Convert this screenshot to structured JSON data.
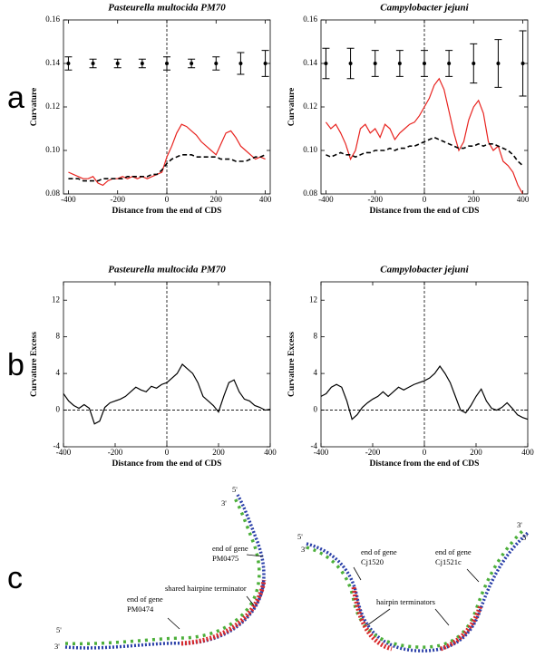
{
  "panels": [
    "a",
    "b",
    "c"
  ],
  "chart_data": [
    {
      "type": "line",
      "title": "Pasteurella multocida PM70",
      "x_label": "Distance from the end of CDS",
      "y_label": "Curvature",
      "xlim": [
        -420,
        420
      ],
      "xticks": [
        -400,
        -200,
        0,
        200,
        400
      ],
      "ylim": [
        0.08,
        0.16
      ],
      "yticks": [
        0.08,
        {
          "value": 0.1,
          "label": "0.10"
        },
        0.12,
        0.14,
        0.16
      ],
      "vline": 0,
      "x": [
        -400,
        -380,
        -360,
        -340,
        -320,
        -300,
        -280,
        -260,
        -240,
        -220,
        -200,
        -180,
        -160,
        -140,
        -120,
        -100,
        -80,
        -60,
        -40,
        -20,
        0,
        20,
        40,
        60,
        80,
        100,
        120,
        140,
        160,
        180,
        200,
        220,
        240,
        260,
        280,
        300,
        320,
        340,
        360,
        380,
        400
      ],
      "series": [
        {
          "color": "#e8231f",
          "line_style": "solid",
          "values": [
            0.09,
            0.089,
            0.088,
            0.087,
            0.087,
            0.088,
            0.085,
            0.084,
            0.086,
            0.087,
            0.087,
            0.088,
            0.087,
            0.088,
            0.087,
            0.088,
            0.087,
            0.088,
            0.089,
            0.09,
            0.097,
            0.102,
            0.108,
            0.112,
            0.111,
            0.109,
            0.107,
            0.104,
            0.102,
            0.1,
            0.098,
            0.103,
            0.108,
            0.109,
            0.106,
            0.102,
            0.1,
            0.098,
            0.096,
            0.097,
            0.096
          ]
        },
        {
          "color": "#000000",
          "line_style": "dashed",
          "values": [
            0.087,
            0.087,
            0.087,
            0.086,
            0.086,
            0.086,
            0.086,
            0.087,
            0.087,
            0.087,
            0.087,
            0.087,
            0.088,
            0.088,
            0.088,
            0.088,
            0.088,
            0.089,
            0.089,
            0.091,
            0.094,
            0.096,
            0.097,
            0.098,
            0.098,
            0.098,
            0.097,
            0.097,
            0.097,
            0.097,
            0.097,
            0.096,
            0.096,
            0.096,
            0.095,
            0.095,
            0.095,
            0.096,
            0.097,
            0.097,
            0.098
          ]
        }
      ],
      "errorbars": {
        "color": "#000000",
        "x": [
          -400,
          -300,
          -200,
          -100,
          0,
          100,
          200,
          300,
          400
        ],
        "values": [
          0.14,
          0.14,
          0.14,
          0.14,
          0.14,
          0.14,
          0.14,
          0.14,
          0.14
        ],
        "errors": [
          0.003,
          0.002,
          0.002,
          0.002,
          0.003,
          0.002,
          0.003,
          0.005,
          0.006
        ]
      }
    },
    {
      "type": "line",
      "title": "Campylobacter jejuni",
      "x_label": "Distance from the end of CDS",
      "y_label": "Curvature",
      "xlim": [
        -420,
        420
      ],
      "xticks": [
        -400,
        -200,
        0,
        200,
        400
      ],
      "ylim": [
        0.08,
        0.16
      ],
      "yticks": [
        0.08,
        {
          "value": 0.1,
          "label": "0.10"
        },
        0.12,
        0.14,
        0.16
      ],
      "vline": 0,
      "x": [
        -400,
        -380,
        -360,
        -340,
        -320,
        -300,
        -280,
        -260,
        -240,
        -220,
        -200,
        -180,
        -160,
        -140,
        -120,
        -100,
        -80,
        -60,
        -40,
        -20,
        0,
        20,
        40,
        60,
        80,
        100,
        120,
        140,
        160,
        180,
        200,
        220,
        240,
        260,
        280,
        300,
        320,
        340,
        360,
        380,
        400
      ],
      "series": [
        {
          "color": "#e8231f",
          "line_style": "solid",
          "values": [
            0.113,
            0.11,
            0.112,
            0.108,
            0.103,
            0.096,
            0.1,
            0.11,
            0.112,
            0.108,
            0.11,
            0.106,
            0.112,
            0.11,
            0.105,
            0.108,
            0.11,
            0.112,
            0.113,
            0.116,
            0.12,
            0.124,
            0.13,
            0.133,
            0.128,
            0.118,
            0.108,
            0.1,
            0.104,
            0.114,
            0.12,
            0.123,
            0.117,
            0.104,
            0.1,
            0.102,
            0.095,
            0.093,
            0.09,
            0.084,
            0.08
          ]
        },
        {
          "color": "#000000",
          "line_style": "dashed",
          "values": [
            0.098,
            0.097,
            0.098,
            0.099,
            0.098,
            0.098,
            0.097,
            0.098,
            0.099,
            0.099,
            0.1,
            0.1,
            0.1,
            0.101,
            0.1,
            0.101,
            0.101,
            0.102,
            0.102,
            0.103,
            0.104,
            0.105,
            0.106,
            0.105,
            0.104,
            0.103,
            0.102,
            0.101,
            0.101,
            0.102,
            0.102,
            0.103,
            0.102,
            0.103,
            0.103,
            0.102,
            0.101,
            0.1,
            0.098,
            0.095,
            0.093
          ]
        }
      ],
      "errorbars": {
        "color": "#000000",
        "x": [
          -400,
          -300,
          -200,
          -100,
          0,
          100,
          200,
          300,
          400
        ],
        "values": [
          0.14,
          0.14,
          0.14,
          0.14,
          0.14,
          0.14,
          0.14,
          0.14,
          0.14
        ],
        "errors": [
          0.007,
          0.007,
          0.006,
          0.006,
          0.006,
          0.006,
          0.009,
          0.011,
          0.015
        ]
      }
    },
    {
      "type": "line",
      "title": "Pasteurella multocida PM70",
      "x_label": "Distance from the end of CDS",
      "y_label": "Curvature Excess",
      "xlim": [
        -400,
        400
      ],
      "xticks": [
        -400,
        -200,
        0,
        200,
        400
      ],
      "ylim": [
        -4,
        14
      ],
      "yticks": [
        -4,
        0,
        4,
        8,
        12
      ],
      "vline": 0,
      "hline": 0,
      "x": [
        -400,
        -380,
        -360,
        -340,
        -320,
        -300,
        -280,
        -260,
        -240,
        -220,
        -200,
        -180,
        -160,
        -140,
        -120,
        -100,
        -80,
        -60,
        -40,
        -20,
        0,
        20,
        40,
        60,
        80,
        100,
        120,
        140,
        160,
        180,
        200,
        220,
        240,
        260,
        280,
        300,
        320,
        340,
        360,
        380,
        400
      ],
      "series": [
        {
          "color": "#000000",
          "line_style": "solid",
          "values": [
            1.8,
            1.0,
            0.5,
            0.2,
            0.6,
            0.2,
            -1.5,
            -1.2,
            0.3,
            0.8,
            1.0,
            1.2,
            1.5,
            2.0,
            2.5,
            2.2,
            2.0,
            2.6,
            2.4,
            2.8,
            3.0,
            3.5,
            4.0,
            5.0,
            4.5,
            4.0,
            3.0,
            1.5,
            1.0,
            0.5,
            -0.2,
            1.5,
            3.0,
            3.3,
            2.0,
            1.2,
            1.0,
            0.5,
            0.3,
            0.0,
            0.1
          ]
        }
      ]
    },
    {
      "type": "line",
      "title": "Campylobacter jejuni",
      "x_label": "Distance from the end of CDS",
      "y_label": "Curvature Excess",
      "xlim": [
        -400,
        400
      ],
      "xticks": [
        -400,
        -200,
        0,
        200,
        400
      ],
      "ylim": [
        -4,
        14
      ],
      "yticks": [
        -4,
        0,
        4,
        8,
        12
      ],
      "vline": 0,
      "hline": 0,
      "x": [
        -400,
        -380,
        -360,
        -340,
        -320,
        -300,
        -280,
        -260,
        -240,
        -220,
        -200,
        -180,
        -160,
        -140,
        -120,
        -100,
        -80,
        -60,
        -40,
        -20,
        0,
        20,
        40,
        60,
        80,
        100,
        120,
        140,
        160,
        180,
        200,
        220,
        240,
        260,
        280,
        300,
        320,
        340,
        360,
        380,
        400
      ],
      "series": [
        {
          "color": "#000000",
          "line_style": "solid",
          "values": [
            1.5,
            1.8,
            2.5,
            2.8,
            2.5,
            1.0,
            -1.0,
            -0.5,
            0.3,
            0.8,
            1.2,
            1.5,
            2.0,
            1.5,
            2.0,
            2.5,
            2.2,
            2.5,
            2.8,
            3.0,
            3.2,
            3.5,
            4.0,
            4.8,
            4.0,
            3.0,
            1.5,
            0.0,
            -0.3,
            0.5,
            1.5,
            2.3,
            1.0,
            0.2,
            0.0,
            0.3,
            0.8,
            0.2,
            -0.5,
            -0.8,
            -1.0
          ]
        }
      ]
    }
  ],
  "diagram": {
    "labels": [
      "5'",
      "3'",
      "5'",
      "3'",
      "end of gene",
      "PM0474",
      "shared hairpine terminator",
      "end of gene",
      "PM0475",
      "5'",
      "3'",
      "3'",
      "5'",
      "end of gene",
      "Cj1520",
      "end of gene",
      "Cj1521c",
      "hairpin terminators"
    ]
  }
}
